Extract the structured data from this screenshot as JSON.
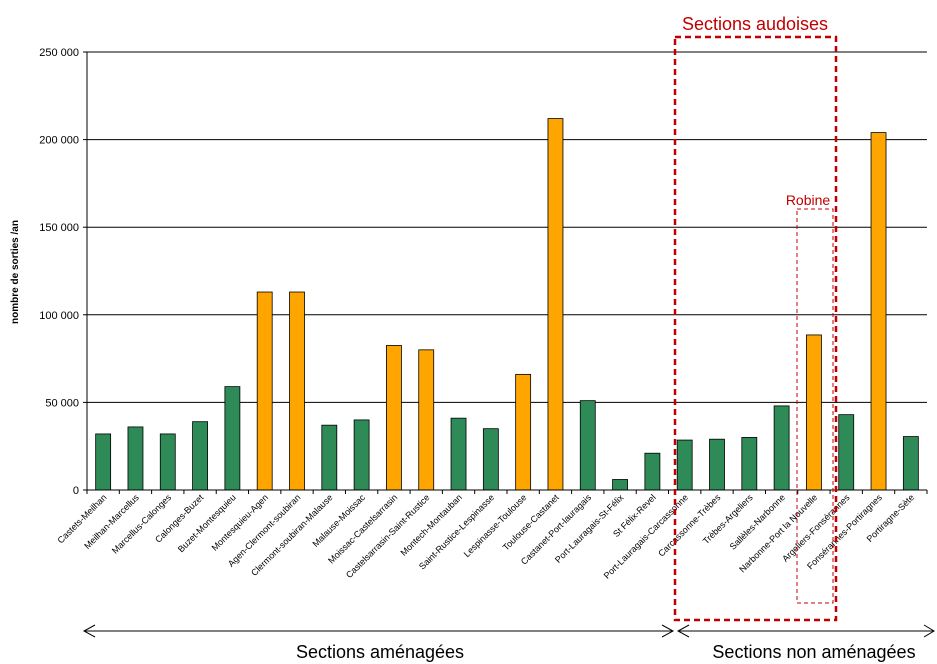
{
  "chart_data": {
    "type": "bar",
    "ylabel": "nombre de sorties /an",
    "xlabel": "",
    "ylim": [
      0,
      250000
    ],
    "yticks": [
      0,
      50000,
      100000,
      150000,
      200000,
      250000
    ],
    "ytick_labels": [
      "0",
      "50 000",
      "100 000",
      "150 000",
      "200 000",
      "250 000"
    ],
    "grid": "horizontal",
    "categories": [
      "Castets-Meilhan",
      "Meilhan-Marcellus",
      "Marcellus-Calonges",
      "Calonges-Buzet",
      "Buzet-Montesquieu",
      "Montesquieu-Agen",
      "Agen-Clermont-soubiran",
      "Clermont-soubiran-Malause",
      "Malause-Moissac",
      "Moissac-Castelsarrasin",
      "Castelsarrasin-Saint-Rustice",
      "Montech-Montauban",
      "Saint-Rustice-Lespinasse",
      "Lespinasse-Toulouse",
      "Toulouse-Castanet",
      "Castanet-Port-lauragais",
      "Port-Lauragais-St-Félix",
      "St Félix-Revel",
      "Port-Lauragais-Carcassonne",
      "Carcassonne-Trèbes",
      "Trèbes-Argeliers",
      "Sallèles-Narbonne",
      "Narbonne-Port la Nouvelle",
      "Argeliers-Fonsérannes",
      "Fonsérannes-Portiragnes",
      "Portiragne-Sète"
    ],
    "values": [
      32000,
      36000,
      32000,
      39000,
      59000,
      113000,
      113000,
      37000,
      40000,
      82500,
      80000,
      41000,
      35000,
      66000,
      212000,
      51000,
      6000,
      21000,
      28500,
      29000,
      30000,
      48000,
      88500,
      43000,
      204000,
      30500
    ],
    "bar_colors": [
      "#2e8b57",
      "#2e8b57",
      "#2e8b57",
      "#2e8b57",
      "#2e8b57",
      "#ffa500",
      "#ffa500",
      "#2e8b57",
      "#2e8b57",
      "#ffa500",
      "#ffa500",
      "#2e8b57",
      "#2e8b57",
      "#ffa500",
      "#ffa500",
      "#2e8b57",
      "#2e8b57",
      "#2e8b57",
      "#2e8b57",
      "#2e8b57",
      "#2e8b57",
      "#2e8b57",
      "#ffa500",
      "#2e8b57",
      "#ffa500",
      "#2e8b57"
    ],
    "annotations": {
      "sections_audoises": "Sections audoises",
      "robine": "Robine",
      "sections_amenagees": "Sections aménagées",
      "sections_non_amenagees": "Sections non aménagées"
    },
    "annotation_color": "#c00000"
  }
}
